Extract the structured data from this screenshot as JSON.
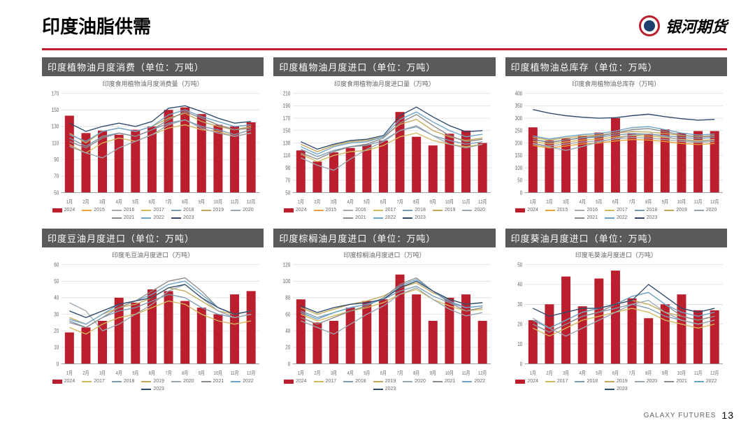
{
  "page": {
    "title": "印度油脂供需",
    "brand": "银河期货",
    "footer_label": "GALAXY FUTURES",
    "page_number": "13"
  },
  "colors": {
    "bar_2024": "#bb1e2d",
    "axis": "#888888",
    "grid": "#d8d8d8",
    "text": "#666666",
    "line_2015": "#e8a23a",
    "line_2016": "#a9a9a9",
    "line_2017": "#d4b95e",
    "line_2018": "#7b9bb3",
    "line_2019": "#c4a85a",
    "line_2020": "#9aa7b0",
    "line_2021": "#8a8a8a",
    "line_2022": "#6ca4c9",
    "line_2023": "#2e4a6b"
  },
  "months": [
    "1月",
    "2月",
    "3月",
    "4月",
    "5月",
    "6月",
    "7月",
    "8月",
    "9月",
    "10月",
    "11月",
    "12月"
  ],
  "legend_top": [
    "2024",
    "2015",
    "2016",
    "2017",
    "2018",
    "2019",
    "2020",
    "2021",
    "2022",
    "2023"
  ],
  "legend_bottom": [
    "2024",
    "2017",
    "2018",
    "2019",
    "2020",
    "2021",
    "2022",
    "2023"
  ],
  "charts": [
    {
      "id": "c1",
      "banner": "印度植物油月度消费（单位：万吨）",
      "subtitle": "印度食用植物油月度消费量（万吨）",
      "ylim": [
        50,
        170
      ],
      "ystep": 20,
      "bars_2024": [
        143,
        122,
        125,
        120,
        126,
        130,
        150,
        153,
        145,
        132,
        130,
        135
      ],
      "lines": {
        "2017": [
          108,
          98,
          110,
          116,
          112,
          120,
          128,
          132,
          126,
          124,
          118,
          122
        ],
        "2018": [
          116,
          106,
          118,
          122,
          118,
          126,
          134,
          138,
          130,
          126,
          120,
          126
        ],
        "2019": [
          122,
          110,
          124,
          128,
          124,
          130,
          140,
          146,
          136,
          130,
          126,
          130
        ],
        "2020": [
          106,
          98,
          92,
          104,
          112,
          120,
          132,
          138,
          128,
          122,
          118,
          122
        ],
        "2021": [
          112,
          104,
          116,
          122,
          118,
          126,
          138,
          148,
          140,
          132,
          126,
          128
        ],
        "2022": [
          120,
          112,
          124,
          128,
          124,
          130,
          144,
          150,
          142,
          136,
          130,
          132
        ],
        "2023": [
          134,
          124,
          130,
          134,
          130,
          136,
          152,
          155,
          148,
          140,
          134,
          136
        ]
      },
      "legend": "top"
    },
    {
      "id": "c2",
      "banner": "印度植物油月度进口（单位：万吨）",
      "subtitle": "印度食用植物油月度进口量（万吨）",
      "ylim": [
        50,
        210
      ],
      "ystep": 20,
      "bars_2024": [
        118,
        100,
        115,
        122,
        128,
        134,
        180,
        140,
        126,
        145,
        150,
        130
      ],
      "lines": {
        "2017": [
          112,
          100,
          110,
          116,
          118,
          126,
          140,
          146,
          134,
          128,
          124,
          128
        ],
        "2018": [
          120,
          108,
          118,
          124,
          126,
          134,
          150,
          156,
          142,
          134,
          128,
          132
        ],
        "2019": [
          128,
          116,
          126,
          132,
          134,
          140,
          160,
          168,
          150,
          140,
          134,
          138
        ],
        "2020": [
          106,
          94,
          86,
          104,
          120,
          132,
          150,
          158,
          142,
          128,
          122,
          128
        ],
        "2021": [
          114,
          104,
          116,
          124,
          128,
          138,
          162,
          176,
          158,
          142,
          132,
          136
        ],
        "2022": [
          124,
          112,
          124,
          130,
          132,
          140,
          168,
          180,
          164,
          150,
          140,
          144
        ],
        "2023": [
          132,
          120,
          128,
          134,
          136,
          142,
          174,
          188,
          172,
          158,
          148,
          150
        ]
      },
      "legend": "top"
    },
    {
      "id": "c3",
      "banner": "印度植物油总库存（单位：万吨）",
      "subtitle": "印度食用植物油总库存（万吨）",
      "ylim": [
        0,
        400
      ],
      "ystep": 50,
      "bars_2024": [
        263,
        210,
        218,
        230,
        242,
        300,
        240,
        238,
        255,
        240,
        248,
        248
      ],
      "lines": {
        "2015": [
          190,
          180,
          188,
          196,
          200,
          208,
          214,
          212,
          206,
          198,
          194,
          198
        ],
        "2016": [
          198,
          188,
          196,
          204,
          208,
          216,
          222,
          220,
          214,
          206,
          202,
          206
        ],
        "2017": [
          206,
          196,
          204,
          212,
          216,
          224,
          230,
          228,
          222,
          214,
          210,
          214
        ],
        "2018": [
          214,
          204,
          212,
          220,
          224,
          232,
          238,
          236,
          230,
          222,
          218,
          222
        ],
        "2019": [
          222,
          212,
          220,
          228,
          232,
          240,
          246,
          244,
          238,
          230,
          226,
          230
        ],
        "2020": [
          196,
          184,
          170,
          186,
          204,
          218,
          232,
          236,
          226,
          212,
          206,
          212
        ],
        "2021": [
          214,
          202,
          212,
          222,
          228,
          240,
          254,
          258,
          246,
          232,
          224,
          228
        ],
        "2022": [
          228,
          216,
          226,
          234,
          238,
          248,
          262,
          266,
          254,
          240,
          232,
          236
        ],
        "2023": [
          335,
          320,
          310,
          304,
          300,
          302,
          310,
          316,
          306,
          298,
          292,
          295
        ]
      },
      "legend": "top"
    },
    {
      "id": "c4",
      "banner": "印度豆油月度进口（单位：万吨）",
      "subtitle": "印度毛豆油月度进口（万吨）",
      "ylim": [
        0,
        60
      ],
      "ystep": 10,
      "bars_2024": [
        19,
        22,
        26,
        40,
        37,
        45,
        44,
        38,
        34,
        30,
        42,
        44
      ],
      "lines": {
        "2017": [
          22,
          18,
          24,
          28,
          30,
          34,
          38,
          36,
          30,
          26,
          24,
          26
        ],
        "2018": [
          26,
          22,
          28,
          32,
          34,
          38,
          42,
          40,
          34,
          30,
          28,
          30
        ],
        "2019": [
          28,
          24,
          30,
          34,
          36,
          40,
          46,
          44,
          38,
          32,
          30,
          32
        ],
        "2020": [
          37,
          32,
          20,
          24,
          30,
          36,
          44,
          48,
          40,
          32,
          28,
          30
        ],
        "2021": [
          25,
          22,
          28,
          34,
          38,
          44,
          50,
          52,
          44,
          34,
          30,
          32
        ],
        "2022": [
          27,
          24,
          30,
          36,
          38,
          42,
          48,
          50,
          42,
          34,
          30,
          32
        ],
        "2023": [
          32,
          28,
          32,
          36,
          38,
          40,
          46,
          48,
          40,
          34,
          30,
          32
        ]
      },
      "legend": "bottom"
    },
    {
      "id": "c5",
      "banner": "印度棕榈油月度进口（单位：万吨）",
      "subtitle": "印度棕榈油月度进口（万吨）",
      "ylim": [
        0,
        120
      ],
      "ystep": 20,
      "bars_2024": [
        78,
        50,
        52,
        68,
        76,
        78,
        108,
        84,
        52,
        80,
        84,
        52
      ],
      "lines": {
        "2017": [
          60,
          52,
          58,
          64,
          68,
          74,
          84,
          90,
          78,
          70,
          64,
          66
        ],
        "2018": [
          64,
          56,
          62,
          68,
          72,
          78,
          88,
          94,
          82,
          74,
          68,
          70
        ],
        "2019": [
          68,
          60,
          66,
          72,
          76,
          82,
          92,
          98,
          86,
          78,
          72,
          74
        ],
        "2020": [
          52,
          44,
          36,
          48,
          60,
          70,
          84,
          92,
          78,
          66,
          58,
          62
        ],
        "2021": [
          56,
          48,
          56,
          64,
          70,
          80,
          96,
          104,
          88,
          74,
          64,
          68
        ],
        "2022": [
          62,
          54,
          62,
          68,
          72,
          78,
          94,
          102,
          88,
          76,
          68,
          70
        ],
        "2023": [
          70,
          62,
          68,
          72,
          74,
          78,
          92,
          100,
          88,
          78,
          72,
          74
        ]
      },
      "legend": "bottom"
    },
    {
      "id": "c6",
      "banner": "印度葵油月度进口（单位：万吨）",
      "subtitle": "印度毛葵油月度进口（万吨）",
      "ylim": [
        0,
        50
      ],
      "ystep": 10,
      "bars_2024": [
        22,
        30,
        44,
        29,
        43,
        47,
        33,
        23,
        30,
        35,
        27,
        27
      ],
      "lines": {
        "2017": [
          18,
          14,
          18,
          22,
          24,
          26,
          28,
          26,
          22,
          20,
          18,
          20
        ],
        "2018": [
          20,
          16,
          20,
          24,
          26,
          28,
          30,
          28,
          24,
          22,
          20,
          22
        ],
        "2019": [
          22,
          18,
          22,
          26,
          28,
          30,
          32,
          30,
          26,
          24,
          22,
          24
        ],
        "2020": [
          23,
          18,
          14,
          18,
          22,
          26,
          30,
          32,
          26,
          22,
          20,
          22
        ],
        "2021": [
          20,
          16,
          20,
          24,
          26,
          30,
          34,
          36,
          30,
          24,
          22,
          24
        ],
        "2022": [
          22,
          18,
          22,
          26,
          28,
          30,
          34,
          36,
          30,
          26,
          24,
          26
        ],
        "2023": [
          28,
          24,
          26,
          28,
          28,
          30,
          32,
          40,
          34,
          28,
          26,
          28
        ]
      },
      "legend": "bottom"
    }
  ]
}
